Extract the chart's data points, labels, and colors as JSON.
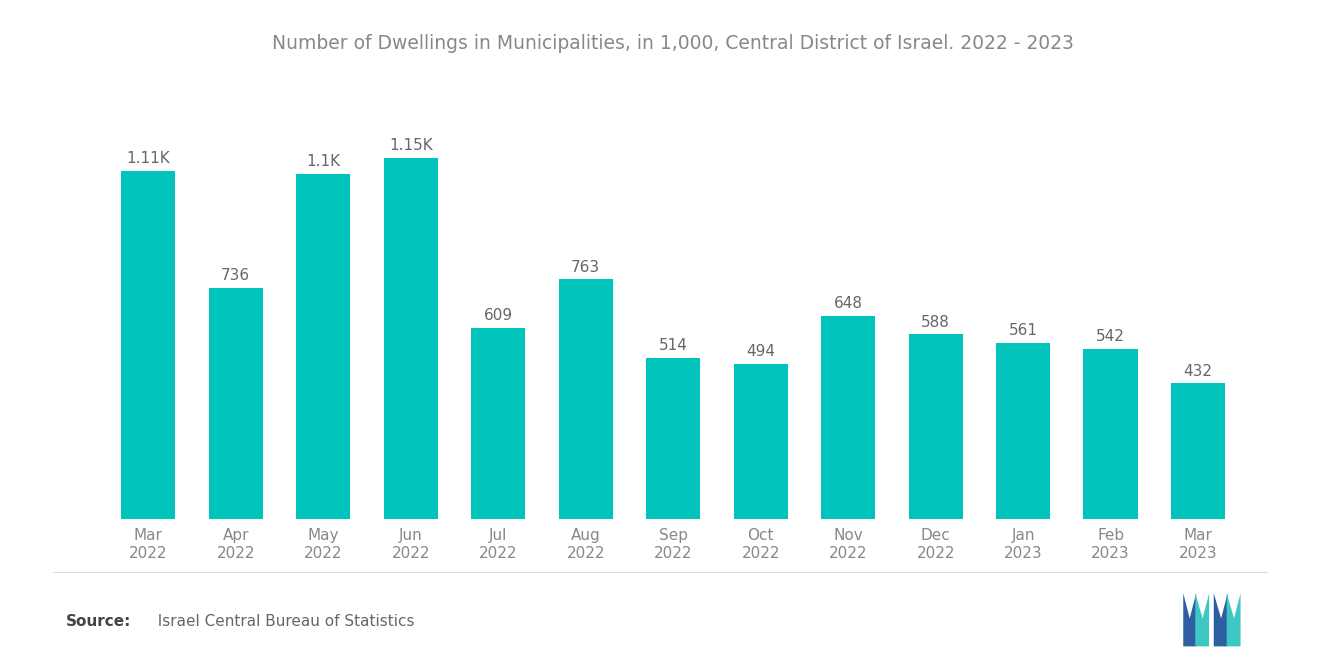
{
  "title": "Number of Dwellings in Municipalities, in 1,000, Central District of Israel. 2022 - 2023",
  "categories": [
    "Mar\n2022",
    "Apr\n2022",
    "May\n2022",
    "Jun\n2022",
    "Jul\n2022",
    "Aug\n2022",
    "Sep\n2022",
    "Oct\n2022",
    "Nov\n2022",
    "Dec\n2022",
    "Jan\n2023",
    "Feb\n2023",
    "Mar\n2023"
  ],
  "values": [
    1110,
    736,
    1100,
    1150,
    609,
    763,
    514,
    494,
    648,
    588,
    561,
    542,
    432
  ],
  "labels": [
    "1.11K",
    "736",
    "1.1K",
    "1.15K",
    "609",
    "763",
    "514",
    "494",
    "648",
    "588",
    "561",
    "542",
    "432"
  ],
  "bar_color": "#00C4BC",
  "background_color": "#FFFFFF",
  "title_color": "#888888",
  "label_color": "#666666",
  "tick_color": "#888888",
  "source_bold": "Source:",
  "source_rest": "  Israel Central Bureau of Statistics",
  "title_fontsize": 13.5,
  "label_fontsize": 11,
  "tick_fontsize": 11,
  "source_fontsize": 11,
  "ylim": [
    0,
    1400
  ],
  "bar_width": 0.62,
  "logo_left_color": "#2E5FA3",
  "logo_right_color": "#3EC8C4"
}
